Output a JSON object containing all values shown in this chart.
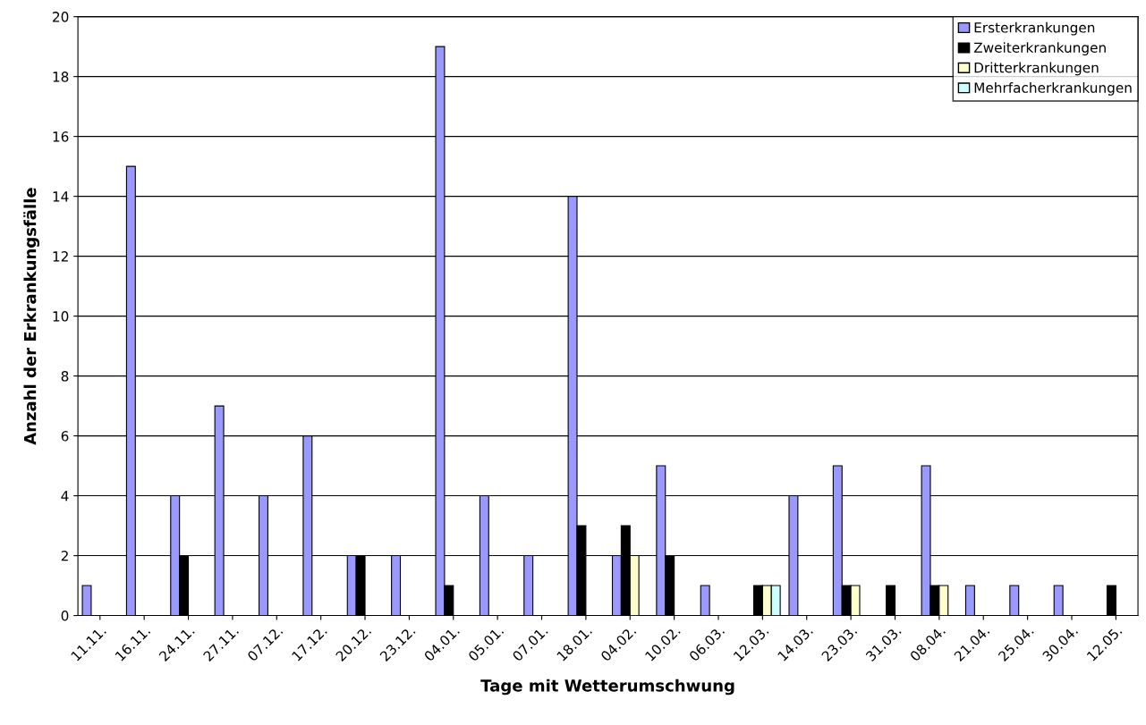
{
  "chart_data": {
    "type": "bar",
    "xlabel": "Tage mit Wetterumschwung",
    "ylabel": "Anzahl der Erkrankungsfälle",
    "categories": [
      "11.11.",
      "16.11.",
      "24.11.",
      "27.11.",
      "07.12.",
      "17.12.",
      "20.12.",
      "23.12.",
      "04.01.",
      "05.01.",
      "07.01.",
      "18.01.",
      "04.02.",
      "10.02.",
      "06.03.",
      "12.03.",
      "14.03.",
      "23.03.",
      "31.03.",
      "08.04.",
      "21.04.",
      "25.04.",
      "30.04.",
      "12.05."
    ],
    "series": [
      {
        "name": "Ersterkrankungen",
        "color": "#9999ff",
        "values": [
          1,
          15,
          4,
          7,
          4,
          6,
          2,
          2,
          19,
          4,
          2,
          14,
          2,
          5,
          1,
          null,
          4,
          5,
          null,
          5,
          1,
          1,
          1,
          null
        ]
      },
      {
        "name": "Zweiterkrankungen",
        "color": "#000000",
        "values": [
          null,
          null,
          2,
          null,
          null,
          null,
          2,
          null,
          1,
          null,
          null,
          3,
          3,
          2,
          null,
          1,
          null,
          1,
          1,
          1,
          null,
          null,
          null,
          1
        ]
      },
      {
        "name": "Dritterkrankungen",
        "color": "#ffffcc",
        "values": [
          null,
          null,
          null,
          null,
          null,
          null,
          null,
          null,
          null,
          null,
          null,
          null,
          2,
          null,
          null,
          1,
          null,
          1,
          null,
          1,
          null,
          null,
          null,
          null
        ]
      },
      {
        "name": "Mehrfacherkrankungen",
        "color": "#ccffff",
        "values": [
          null,
          null,
          null,
          null,
          null,
          null,
          null,
          null,
          null,
          null,
          null,
          null,
          null,
          null,
          null,
          1,
          null,
          null,
          null,
          null,
          null,
          null,
          null,
          null
        ]
      }
    ],
    "ylim": [
      0,
      20
    ],
    "yticks": [
      0,
      2,
      4,
      6,
      8,
      10,
      12,
      14,
      16,
      18,
      20
    ],
    "grid": "y",
    "legend": "top right"
  }
}
